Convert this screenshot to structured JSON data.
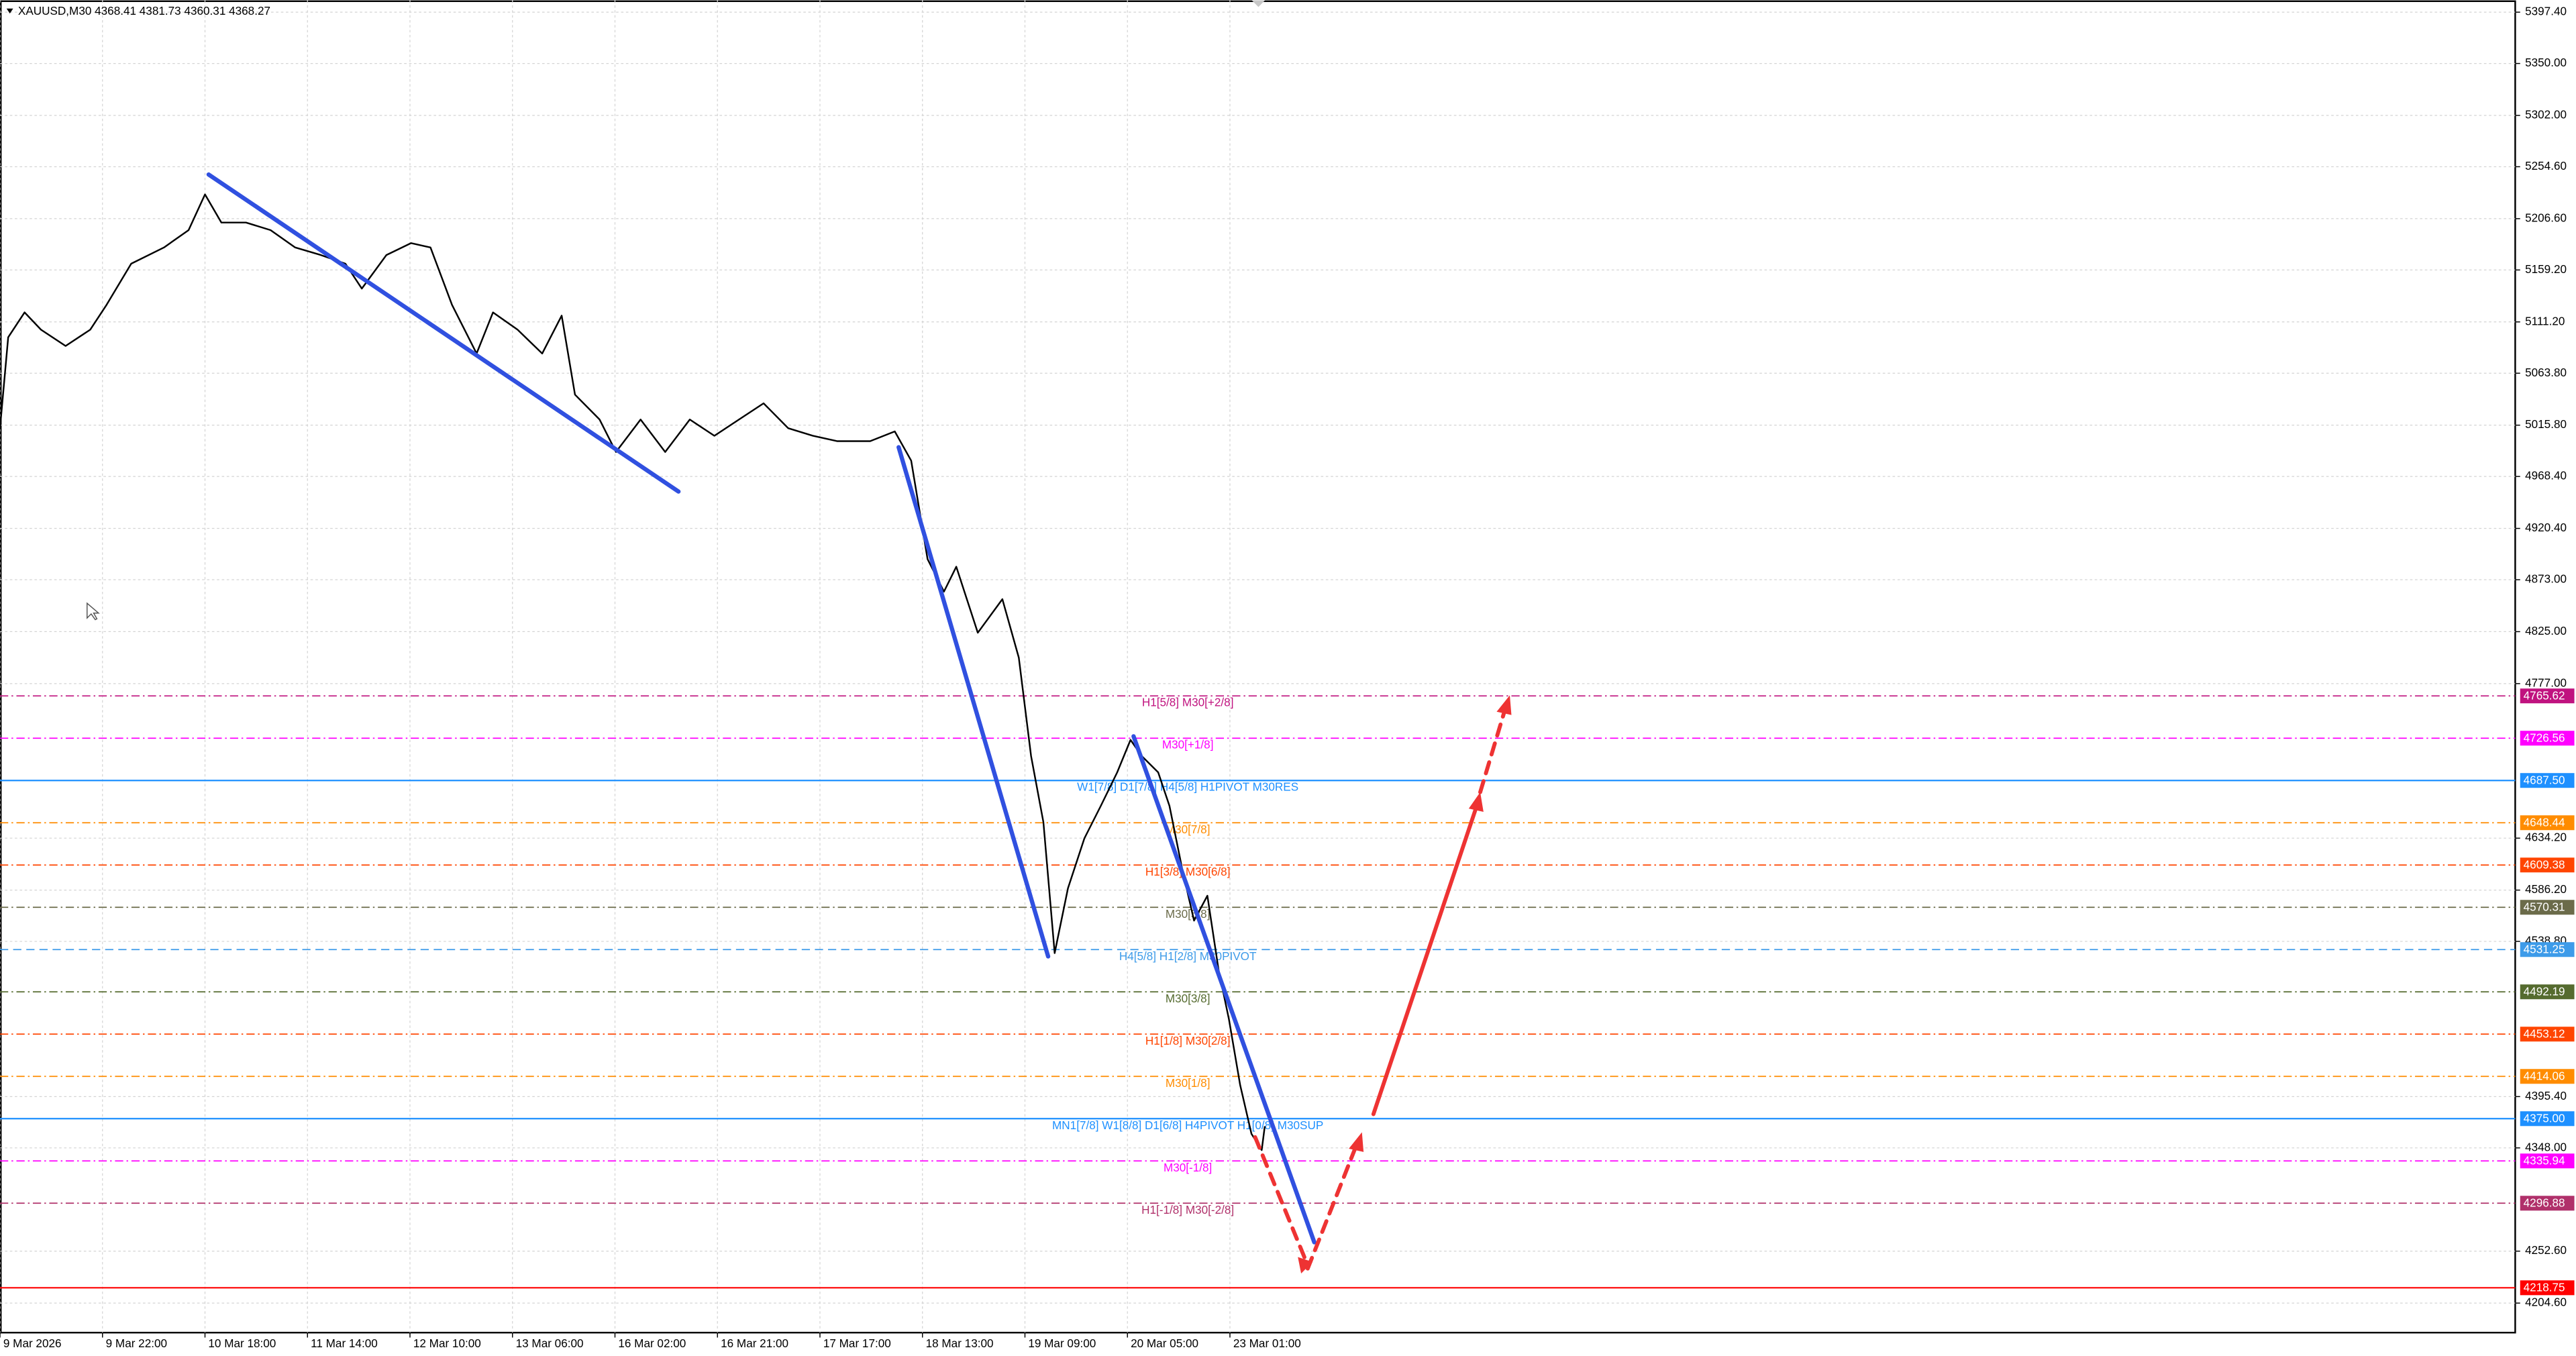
{
  "chart_data": {
    "type": "line",
    "title": "XAUUSD,M30  4368.41 4381.73 4360.31 4368.27",
    "color": "#000000",
    "x": [
      0,
      0.08,
      0.24,
      0.4,
      0.64,
      0.88,
      1.04,
      1.28,
      1.6,
      1.84,
      2.0,
      2.16,
      2.4,
      2.64,
      2.88,
      3.13,
      3.37,
      3.53,
      3.77,
      4.01,
      4.2,
      4.41,
      4.65,
      4.81,
      5.05,
      5.29,
      5.48,
      5.61,
      5.85,
      6.01,
      6.25,
      6.49,
      6.73,
      6.97,
      7.21,
      7.45,
      7.69,
      7.93,
      8.17,
      8.49,
      8.73,
      8.89,
      9.05,
      9.21,
      9.33,
      9.54,
      9.78,
      9.94,
      10.06,
      10.18,
      10.29,
      10.42,
      10.58,
      10.74,
      10.9,
      11.03,
      11.14,
      11.3,
      11.41,
      11.54,
      11.65,
      11.78,
      11.89,
      11.99,
      12.1,
      12.21,
      12.31,
      12.34
    ],
    "values": [
      5013,
      5097,
      5120,
      5104,
      5089,
      5104,
      5127,
      5165,
      5180,
      5196,
      5229,
      5203,
      5203,
      5196,
      5180,
      5173,
      5165,
      5142,
      5173,
      5184,
      5180,
      5127,
      5082,
      5120,
      5104,
      5082,
      5117,
      5044,
      5021,
      4991,
      5021,
      4991,
      5021,
      5006,
      5021,
      5036,
      5013,
      5006,
      5001,
      5001,
      5010,
      4983,
      4892,
      4862,
      4885,
      4824,
      4855,
      4801,
      4710,
      4649,
      4528,
      4588,
      4634,
      4664,
      4695,
      4725,
      4710,
      4695,
      4664,
      4603,
      4558,
      4581,
      4512,
      4467,
      4406,
      4361,
      4346,
      4368
    ],
    "xlim": [
      0,
      24.54
    ],
    "ylim": [
      4177.3,
      5408.3
    ],
    "grid": true,
    "xticks": [
      {
        "value": 0,
        "label": "9 Mar 2026"
      },
      {
        "value": 1,
        "label": "9 Mar 22:00"
      },
      {
        "value": 2,
        "label": "10 Mar 18:00"
      },
      {
        "value": 3,
        "label": "11 Mar 14:00"
      },
      {
        "value": 4,
        "label": "12 Mar 10:00"
      },
      {
        "value": 5,
        "label": "13 Mar 06:00"
      },
      {
        "value": 6,
        "label": "16 Mar 02:00"
      },
      {
        "value": 7,
        "label": "16 Mar 21:00"
      },
      {
        "value": 8,
        "label": "17 Mar 17:00"
      },
      {
        "value": 9,
        "label": "18 Mar 13:00"
      },
      {
        "value": 10,
        "label": "19 Mar 09:00"
      },
      {
        "value": 11,
        "label": "20 Mar 05:00"
      },
      {
        "value": 12,
        "label": "23 Mar 01:00"
      }
    ],
    "yticks": [
      {
        "value": 5397.4,
        "label": "5397.40"
      },
      {
        "value": 5350,
        "label": "5350.00"
      },
      {
        "value": 5302,
        "label": "5302.00"
      },
      {
        "value": 5254.6,
        "label": "5254.60"
      },
      {
        "value": 5206.6,
        "label": "5206.60"
      },
      {
        "value": 5159.2,
        "label": "5159.20"
      },
      {
        "value": 5111.2,
        "label": "5111.20"
      },
      {
        "value": 5063.8,
        "label": "5063.80"
      },
      {
        "value": 5015.8,
        "label": "5015.80"
      },
      {
        "value": 4968.4,
        "label": "4968.40"
      },
      {
        "value": 4920.4,
        "label": "4920.40"
      },
      {
        "value": 4873,
        "label": "4873.00"
      },
      {
        "value": 4825,
        "label": "4825.00"
      },
      {
        "value": 4777,
        "label": "4777.00"
      },
      {
        "value": 4634.2,
        "label": "4634.20"
      },
      {
        "value": 4586.2,
        "label": "4586.20"
      },
      {
        "value": 4538.8,
        "label": "4538.80"
      },
      {
        "value": 4395.4,
        "label": "4395.40"
      },
      {
        "value": 4348,
        "label": "4348.00"
      },
      {
        "value": 4252.6,
        "label": "4252.60"
      },
      {
        "value": 4204.6,
        "label": "4204.60"
      }
    ],
    "levels": [
      {
        "price": 4765.62,
        "price_label": "4765.62",
        "text": "H1[5/8] M30[+2/8]",
        "color": "#c0137f",
        "style": "dashdot"
      },
      {
        "price": 4726.56,
        "price_label": "4726.56",
        "text": "M30[+1/8]",
        "color": "#ff00ff",
        "style": "dashdot"
      },
      {
        "price": 4687.5,
        "price_label": "4687.50",
        "text": "W1[7/8] D1[7/8] H4[5/8] H1PIVOT M30RES",
        "color": "#1e90ff",
        "style": "solid"
      },
      {
        "price": 4648.44,
        "price_label": "4648.44",
        "text": "M30[7/8]",
        "color": "#ff8c00",
        "style": "dashdot"
      },
      {
        "price": 4609.38,
        "price_label": "4609.38",
        "text": "H1[3/8] M30[6/8]",
        "color": "#ff4500",
        "style": "dashdot"
      },
      {
        "price": 4570.31,
        "price_label": "4570.31",
        "text": "M30[5/8]",
        "color": "#6b6b4a",
        "style": "dashdot"
      },
      {
        "price": 4531.25,
        "price_label": "4531.25",
        "text": "H4[5/8] H1[2/8] M30PIVOT",
        "color": "#3d9be9",
        "style": "dashed"
      },
      {
        "price": 4492.19,
        "price_label": "4492.19",
        "text": "M30[3/8]",
        "color": "#556b2f",
        "style": "dashdot"
      },
      {
        "price": 4453.12,
        "price_label": "4453.12",
        "text": "H1[1/8] M30[2/8]",
        "color": "#ff4500",
        "style": "dashdot"
      },
      {
        "price": 4414.06,
        "price_label": "4414.06",
        "text": "M30[1/8]",
        "color": "#ff8c00",
        "style": "dashdot"
      },
      {
        "price": 4375,
        "price_label": "4375.00",
        "text": "MN1[7/8] W1[8/8] D1[6/8] H4PIVOT H1[0/8] M30SUP",
        "color": "#1e90ff",
        "style": "solid"
      },
      {
        "price": 4335.94,
        "price_label": "4335.94",
        "text": "M30[-1/8]",
        "color": "#ff00ff",
        "style": "dashdot"
      },
      {
        "price": 4296.88,
        "price_label": "4296.88",
        "text": "H1[-1/8] M30[-2/8]",
        "color": "#b0306a",
        "style": "dashdot"
      },
      {
        "price": 4218.75,
        "price_label": "4218.75",
        "color": "#ff0000",
        "style": "solid"
      }
    ]
  }
}
